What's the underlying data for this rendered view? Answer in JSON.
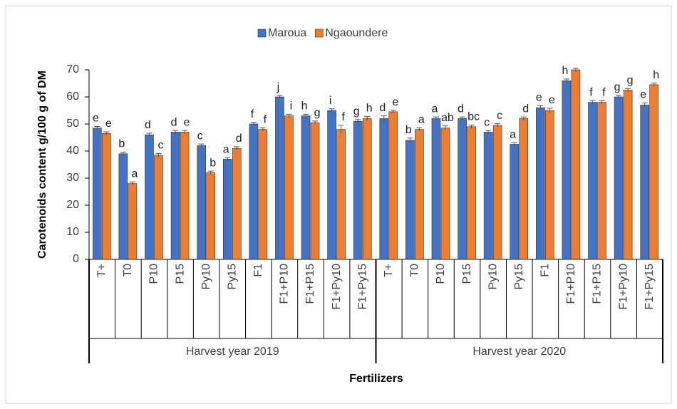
{
  "chart_data": {
    "type": "bar",
    "y_axis_label": "Carotenoids content g/100 g of DM",
    "x_axis_label": "Fertilizers",
    "groups": [
      {
        "label": "Harvest year 2019",
        "categories": [
          "T+",
          "T0",
          "P10",
          "P15",
          "Py10",
          "Py15",
          "F1",
          "F1+P10",
          "F1+P15",
          "F1+Py10",
          "F1+Py15"
        ]
      },
      {
        "label": "Harvest year 2020",
        "categories": [
          "T+",
          "T0",
          "P10",
          "P15",
          "Py10",
          "Py15",
          "F1",
          "F1+P10",
          "F1+P15",
          "F1+Py10",
          "F1+Py15"
        ]
      }
    ],
    "series": [
      {
        "name": "Maroua",
        "color": "#4472c4",
        "values": [
          48.5,
          39,
          46,
          47,
          42,
          37,
          50,
          60,
          53,
          55,
          51,
          52,
          44,
          52,
          52,
          47,
          42.5,
          56,
          66,
          58,
          60,
          57
        ],
        "errors": [
          0.6,
          0.6,
          0.6,
          0.6,
          0.6,
          0.6,
          0.6,
          0.6,
          0.6,
          0.6,
          0.6,
          1,
          0.8,
          0.6,
          0.6,
          0.6,
          0.6,
          0.8,
          0.6,
          0.6,
          0.6,
          0.8
        ],
        "letters": [
          "e",
          "b",
          "d",
          "d",
          "c",
          "a",
          "f",
          "j",
          "h",
          "i",
          "g",
          "d",
          "b",
          "a",
          "d",
          "c",
          "a",
          "e",
          "h",
          "f",
          "g",
          "e"
        ]
      },
      {
        "name": "Ngaoundere",
        "color": "#ed7d31",
        "values": [
          46.5,
          28,
          38.5,
          47,
          32,
          41,
          48,
          53,
          50.5,
          48,
          52,
          54.5,
          48,
          48.5,
          49,
          49.5,
          52,
          55,
          70,
          58,
          62.5,
          64.5
        ],
        "errors": [
          0.6,
          0.6,
          0.6,
          0.6,
          0.6,
          0.6,
          0.6,
          0.6,
          0.6,
          1.5,
          0.8,
          0.6,
          0.6,
          0.8,
          0.6,
          0.6,
          0.6,
          0.8,
          0.6,
          0.6,
          0.6,
          0.6
        ],
        "letters": [
          "e",
          "a",
          "c",
          "e",
          "b",
          "d",
          "f",
          "i",
          "g",
          "f",
          "h",
          "e",
          "a",
          "ab",
          "bc",
          "c",
          "d",
          "e",
          null,
          "f",
          "g",
          "h"
        ]
      }
    ],
    "ylim": [
      0,
      70
    ],
    "yticks": [
      0,
      10,
      20,
      30,
      40,
      50,
      60,
      70
    ],
    "legend": "top"
  }
}
